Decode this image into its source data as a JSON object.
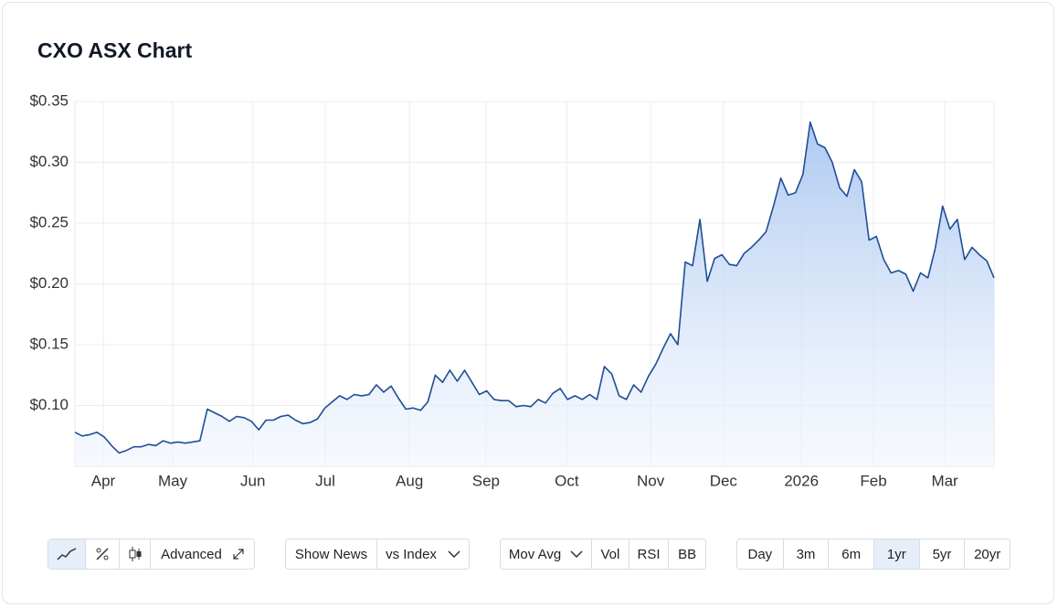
{
  "chart_data": {
    "type": "line",
    "title": "CXO ASX Chart",
    "series": [
      {
        "name": "CXO",
        "color": "#1f4e96",
        "values": [
          0.078,
          0.075,
          0.076,
          0.078,
          0.074,
          0.067,
          0.061,
          0.063,
          0.066,
          0.066,
          0.068,
          0.067,
          0.071,
          0.069,
          0.07,
          0.069,
          0.07,
          0.071,
          0.097,
          0.094,
          0.091,
          0.087,
          0.091,
          0.09,
          0.087,
          0.08,
          0.088,
          0.088,
          0.091,
          0.092,
          0.088,
          0.085,
          0.086,
          0.089,
          0.098,
          0.103,
          0.108,
          0.105,
          0.109,
          0.108,
          0.109,
          0.117,
          0.111,
          0.116,
          0.106,
          0.097,
          0.098,
          0.096,
          0.103,
          0.125,
          0.119,
          0.129,
          0.12,
          0.129,
          0.119,
          0.109,
          0.112,
          0.105,
          0.104,
          0.104,
          0.099,
          0.1,
          0.099,
          0.105,
          0.102,
          0.11,
          0.114,
          0.105,
          0.108,
          0.105,
          0.109,
          0.105,
          0.132,
          0.126,
          0.108,
          0.105,
          0.117,
          0.111,
          0.124,
          0.134,
          0.147,
          0.159,
          0.15,
          0.218,
          0.215,
          0.253,
          0.202,
          0.221,
          0.224,
          0.216,
          0.215,
          0.225,
          0.23,
          0.236,
          0.243,
          0.264,
          0.287,
          0.273,
          0.275,
          0.29,
          0.333,
          0.315,
          0.312,
          0.3,
          0.279,
          0.272,
          0.294,
          0.284,
          0.236,
          0.239,
          0.22,
          0.209,
          0.211,
          0.208,
          0.194,
          0.209,
          0.205,
          0.229,
          0.264,
          0.245,
          0.253,
          0.22,
          0.23,
          0.224,
          0.219,
          0.205
        ]
      }
    ],
    "xlim": [
      0,
      125
    ],
    "xticks": [
      {
        "value": 3.85,
        "label": "Apr"
      },
      {
        "value": 13.3,
        "label": "May"
      },
      {
        "value": 24.2,
        "label": "Jun"
      },
      {
        "value": 34.05,
        "label": "Jul"
      },
      {
        "value": 45.5,
        "label": "Aug"
      },
      {
        "value": 55.9,
        "label": "Sep"
      },
      {
        "value": 66.9,
        "label": "Oct"
      },
      {
        "value": 78.3,
        "label": "Nov"
      },
      {
        "value": 88.2,
        "label": "Dec"
      },
      {
        "value": 98.8,
        "label": "2026"
      },
      {
        "value": 108.6,
        "label": "Feb"
      },
      {
        "value": 118.3,
        "label": "Mar"
      }
    ],
    "ylim": [
      0.05,
      0.35
    ],
    "yticks": [
      {
        "value": 0.1,
        "label": "$0.10"
      },
      {
        "value": 0.15,
        "label": "$0.15"
      },
      {
        "value": 0.2,
        "label": "$0.20"
      },
      {
        "value": 0.25,
        "label": "$0.25"
      },
      {
        "value": 0.3,
        "label": "$0.30"
      },
      {
        "value": 0.35,
        "label": "$0.35"
      }
    ],
    "grid": true
  },
  "toolbar": {
    "style_group": [
      "Advanced"
    ],
    "overlay_group": [
      "Show News",
      "vs Index"
    ],
    "indicator_group": [
      "Mov Avg",
      "Vol",
      "RSI",
      "BB"
    ],
    "range_group": [
      "Day",
      "3m",
      "6m",
      "1yr",
      "5yr",
      "20yr"
    ]
  }
}
